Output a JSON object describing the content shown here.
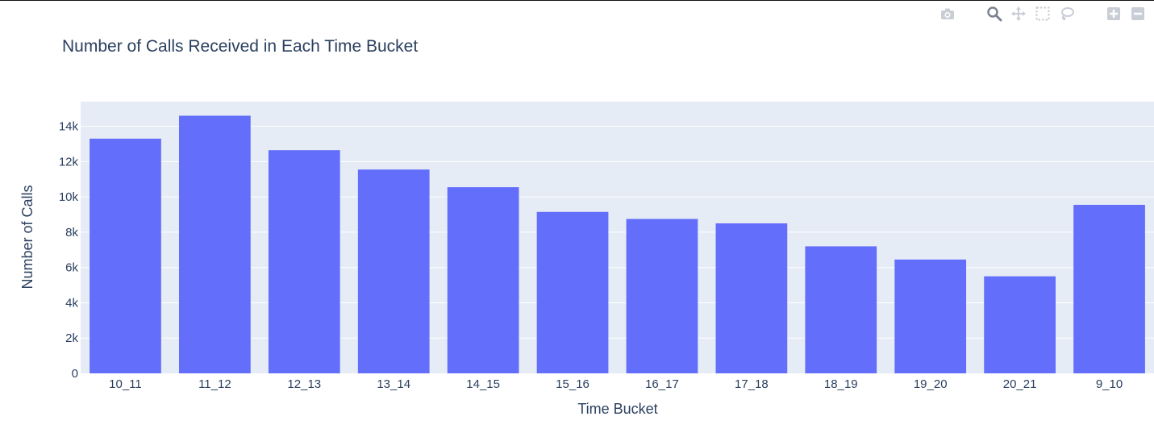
{
  "modebar": {
    "buttons": [
      {
        "icon": "camera-icon",
        "label": "Download plot as a png"
      },
      {
        "icon": "zoom-icon",
        "label": "Zoom"
      },
      {
        "icon": "pan-icon",
        "label": "Pan"
      },
      {
        "icon": "box-select-icon",
        "label": "Box Select"
      },
      {
        "icon": "lasso-select-icon",
        "label": "Lasso Select"
      },
      {
        "icon": "zoom-in-icon",
        "label": "Zoom in"
      },
      {
        "icon": "zoom-out-icon",
        "label": "Zoom out"
      }
    ]
  },
  "chart_data": {
    "type": "bar",
    "title": "Number of Calls Received in Each Time Bucket",
    "xlabel": "Time Bucket",
    "ylabel": "Number of Calls",
    "categories": [
      "10_11",
      "11_12",
      "12_13",
      "13_14",
      "14_15",
      "15_16",
      "16_17",
      "17_18",
      "18_19",
      "19_20",
      "20_21",
      "9_10"
    ],
    "values": [
      13300,
      14600,
      12650,
      11550,
      10550,
      9150,
      8750,
      8500,
      7200,
      6450,
      5500,
      9550
    ],
    "ylim": [
      0,
      15400
    ],
    "yticks": [
      0,
      2000,
      4000,
      6000,
      8000,
      10000,
      12000,
      14000
    ],
    "ytick_labels": [
      "0",
      "2k",
      "4k",
      "6k",
      "8k",
      "10k",
      "12k",
      "14k"
    ],
    "grid": true,
    "colors": {
      "bar": "#636efa",
      "plot_bg": "#e5ecf6",
      "grid": "#ffffff",
      "text": "#2a3f5f",
      "icon": "#c9ced6"
    }
  }
}
